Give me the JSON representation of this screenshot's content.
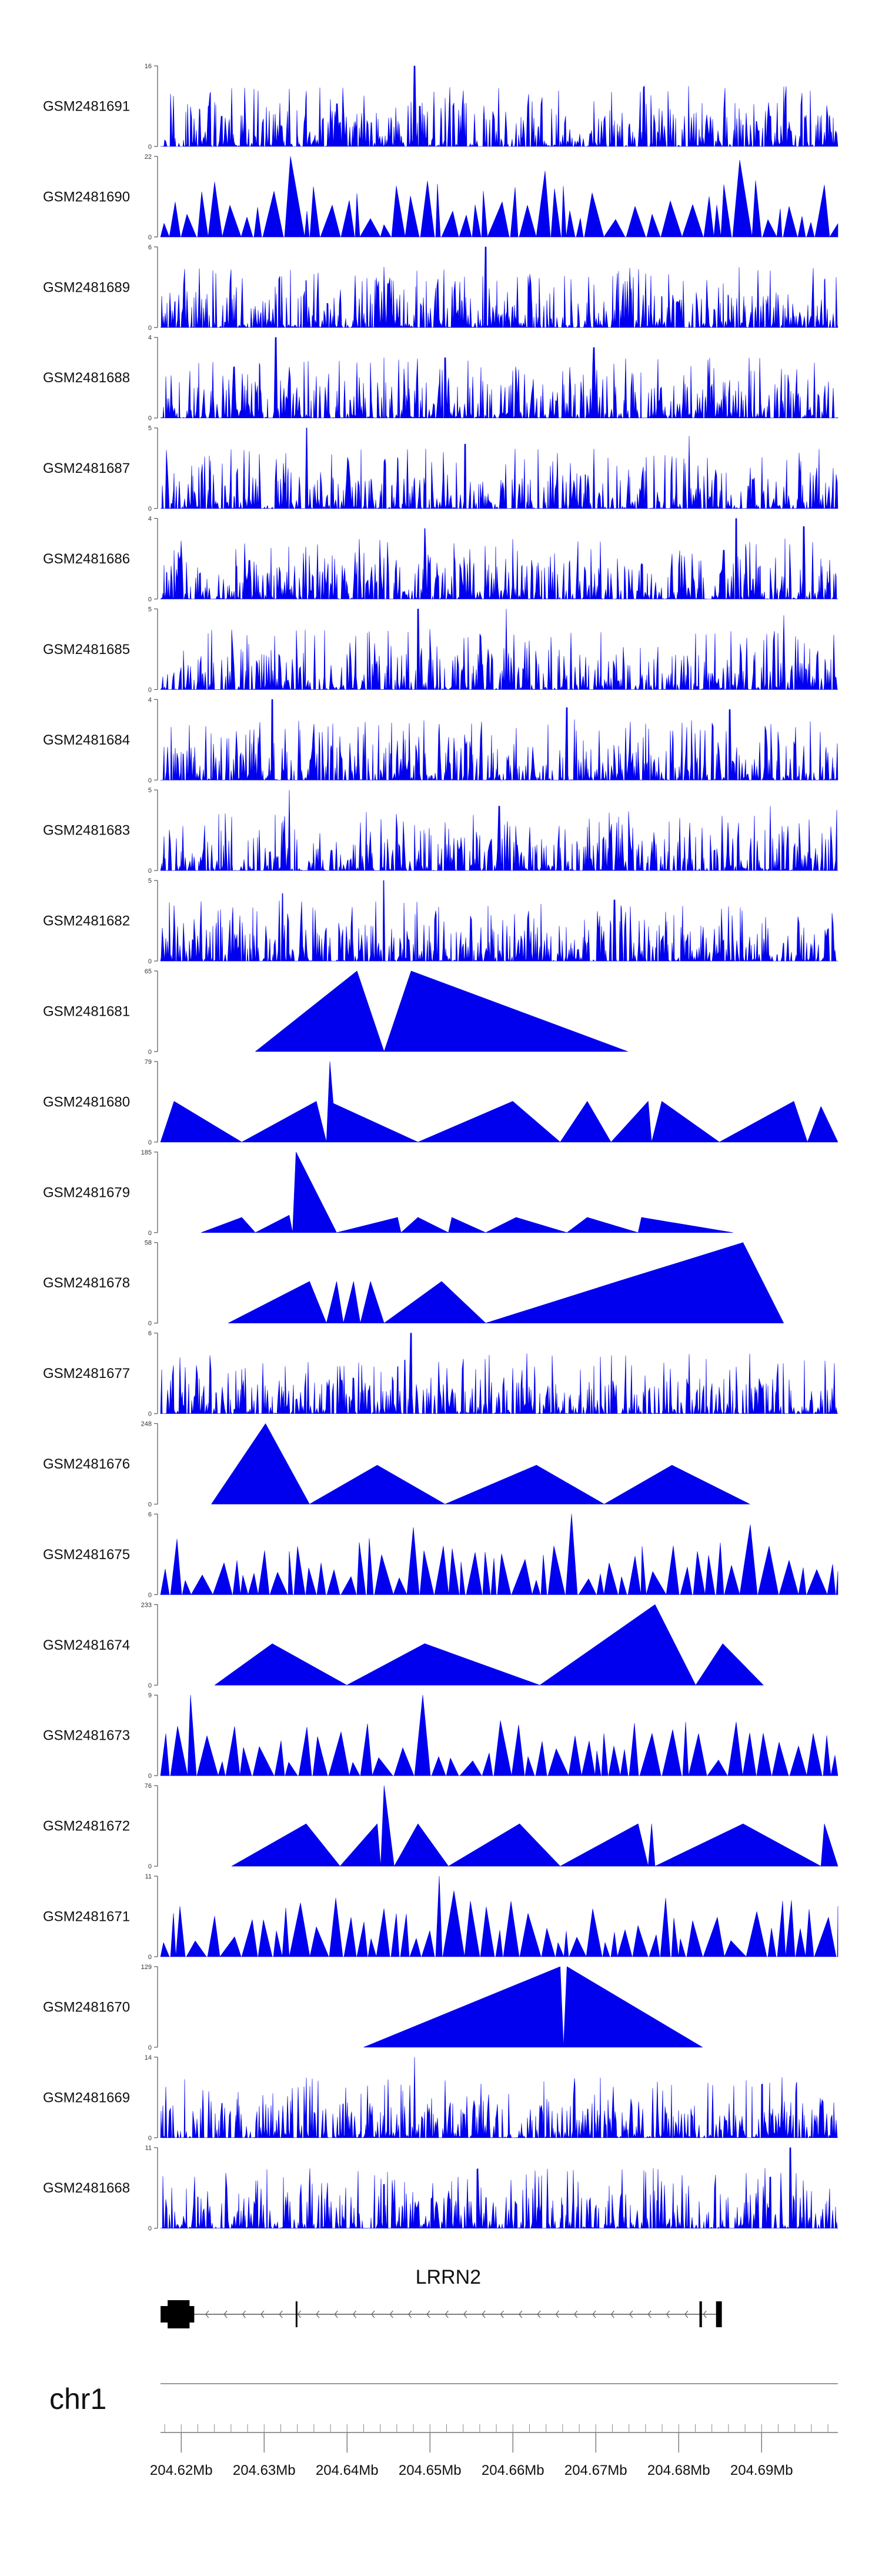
{
  "chart_data": {
    "type": "area",
    "title": "",
    "color": "#0000ee",
    "tracks": [
      {
        "name": "GSM2481691",
        "ymax": 16,
        "ymin": 0,
        "style": "dense",
        "seed": 11,
        "spikes": [
          [
            0.375,
            16
          ],
          [
            0.383,
            8
          ],
          [
            0.07,
            8
          ],
          [
            0.09,
            6
          ],
          [
            0.88,
            5
          ],
          [
            0.9,
            6
          ]
        ]
      },
      {
        "name": "GSM2481690",
        "ymax": 22,
        "ymin": 0,
        "style": "sparse",
        "seed": 12,
        "spikes": [
          [
            0.205,
            22
          ],
          [
            0.57,
            18
          ],
          [
            0.86,
            21
          ]
        ]
      },
      {
        "name": "GSM2481689",
        "ymax": 6,
        "ymin": 0,
        "style": "dense",
        "seed": 13,
        "spikes": [
          [
            0.48,
            6
          ],
          [
            0.33,
            4.5
          ],
          [
            0.215,
            3.5
          ]
        ]
      },
      {
        "name": "GSM2481688",
        "ymax": 4,
        "ymin": 0,
        "style": "dense",
        "seed": 14,
        "spikes": [
          [
            0.17,
            4
          ],
          [
            0.42,
            3
          ],
          [
            0.64,
            3.5
          ]
        ]
      },
      {
        "name": "GSM2481687",
        "ymax": 5,
        "ymin": 0,
        "style": "dense",
        "seed": 15,
        "spikes": [
          [
            0.215,
            5
          ],
          [
            0.78,
            4.5
          ],
          [
            0.45,
            4
          ]
        ]
      },
      {
        "name": "GSM2481686",
        "ymax": 4,
        "ymin": 0,
        "style": "dense",
        "seed": 16,
        "spikes": [
          [
            0.85,
            4
          ],
          [
            0.39,
            3.5
          ],
          [
            0.95,
            3.6
          ]
        ]
      },
      {
        "name": "GSM2481685",
        "ymax": 5,
        "ymin": 0,
        "style": "dense",
        "seed": 17,
        "spikes": [
          [
            0.38,
            5
          ],
          [
            0.51,
            5
          ],
          [
            0.92,
            4.6
          ]
        ]
      },
      {
        "name": "GSM2481684",
        "ymax": 4,
        "ymin": 0,
        "style": "dense",
        "seed": 18,
        "spikes": [
          [
            0.165,
            4
          ],
          [
            0.6,
            3.6
          ],
          [
            0.84,
            3.5
          ]
        ]
      },
      {
        "name": "GSM2481683",
        "ymax": 5,
        "ymin": 0,
        "style": "dense",
        "seed": 19,
        "spikes": [
          [
            0.19,
            5
          ],
          [
            0.5,
            4
          ],
          [
            0.9,
            4
          ]
        ]
      },
      {
        "name": "GSM2481682",
        "ymax": 5,
        "ymin": 0,
        "style": "dense",
        "seed": 20,
        "spikes": [
          [
            0.33,
            5
          ],
          [
            0.18,
            4.2
          ],
          [
            0.67,
            3.8
          ]
        ]
      },
      {
        "name": "GSM2481681",
        "ymax": 65,
        "ymin": 0,
        "style": "triangles",
        "seed": 21,
        "x": [
          0.14,
          0.29,
          0.33,
          0.37,
          0.69
        ],
        "y": [
          0,
          65,
          0,
          65,
          0
        ]
      },
      {
        "name": "GSM2481680",
        "ymax": 79,
        "ymin": 0,
        "style": "triangles",
        "seed": 22,
        "x": [
          0.0,
          0.02,
          0.12,
          0.23,
          0.245,
          0.25,
          0.255,
          0.38,
          0.52,
          0.59,
          0.63,
          0.665,
          0.72,
          0.725,
          0.74,
          0.825,
          0.935,
          0.955,
          0.975,
          1.0
        ],
        "y": [
          0,
          40,
          0,
          40,
          0,
          79,
          38,
          0,
          40,
          0,
          40,
          0,
          40,
          0,
          40,
          0,
          40,
          0,
          35,
          0
        ]
      },
      {
        "name": "GSM2481679",
        "ymax": 185,
        "ymin": 0,
        "style": "triangles",
        "seed": 23,
        "x": [
          0.06,
          0.12,
          0.14,
          0.19,
          0.195,
          0.2,
          0.26,
          0.35,
          0.355,
          0.38,
          0.425,
          0.43,
          0.48,
          0.525,
          0.6,
          0.63,
          0.705,
          0.71,
          0.845
        ],
        "y": [
          0,
          35,
          0,
          40,
          0,
          185,
          0,
          35,
          0,
          35,
          0,
          35,
          0,
          35,
          0,
          35,
          0,
          35,
          0
        ]
      },
      {
        "name": "GSM2481678",
        "ymax": 58,
        "ymin": 0,
        "style": "triangles",
        "seed": 24,
        "x": [
          0.1,
          0.22,
          0.245,
          0.26,
          0.27,
          0.285,
          0.295,
          0.31,
          0.33,
          0.415,
          0.48,
          0.675,
          0.86,
          0.92
        ],
        "y": [
          0,
          30,
          0,
          30,
          0,
          30,
          0,
          30,
          0,
          30,
          0,
          30,
          58,
          0
        ]
      },
      {
        "name": "GSM2481677",
        "ymax": 6,
        "ymin": 0,
        "style": "dense",
        "seed": 25,
        "spikes": [
          [
            0.37,
            6
          ],
          [
            0.36,
            4
          ],
          [
            0.35,
            3.5
          ],
          [
            0.1,
            3
          ]
        ]
      },
      {
        "name": "GSM2481676",
        "ymax": 248,
        "ymin": 0,
        "style": "triangles",
        "seed": 26,
        "x": [
          0.075,
          0.155,
          0.22,
          0.32,
          0.42,
          0.555,
          0.655,
          0.755,
          0.87
        ],
        "y": [
          0,
          248,
          0,
          120,
          0,
          120,
          0,
          120,
          0
        ]
      },
      {
        "name": "GSM2481675",
        "ymax": 6,
        "ymin": 0,
        "style": "sparse",
        "seed": 27,
        "spikes": [
          [
            0.6,
            6
          ],
          [
            0.37,
            5
          ],
          [
            0.87,
            5.2
          ]
        ]
      },
      {
        "name": "GSM2481674",
        "ymax": 233,
        "ymin": 0,
        "style": "triangles",
        "seed": 28,
        "x": [
          0.08,
          0.165,
          0.275,
          0.39,
          0.56,
          0.73,
          0.79,
          0.83,
          0.89
        ],
        "y": [
          0,
          120,
          0,
          120,
          0,
          233,
          0,
          120,
          0
        ]
      },
      {
        "name": "GSM2481673",
        "ymax": 9,
        "ymin": 0,
        "style": "sparse",
        "seed": 29,
        "spikes": [
          [
            0.045,
            9
          ],
          [
            0.375,
            9
          ],
          [
            0.855,
            6
          ]
        ]
      },
      {
        "name": "GSM2481672",
        "ymax": 76,
        "ymin": 0,
        "style": "triangles",
        "seed": 30,
        "x": [
          0.105,
          0.215,
          0.265,
          0.32,
          0.325,
          0.33,
          0.345,
          0.38,
          0.425,
          0.53,
          0.59,
          0.705,
          0.72,
          0.725,
          0.73,
          0.86,
          0.975,
          0.98,
          1.0
        ],
        "y": [
          0,
          40,
          0,
          40,
          0,
          76,
          0,
          40,
          0,
          40,
          0,
          40,
          0,
          40,
          0,
          40,
          0,
          40,
          0
        ]
      },
      {
        "name": "GSM2481671",
        "ymax": 11,
        "ymin": 0,
        "style": "sparse",
        "seed": 31,
        "spikes": [
          [
            0.41,
            11
          ],
          [
            0.42,
            9
          ],
          [
            0.75,
            8
          ],
          [
            0.265,
            8
          ]
        ]
      },
      {
        "name": "GSM2481670",
        "ymax": 129,
        "ymin": 0,
        "style": "triangles",
        "seed": 32,
        "x": [
          0.3,
          0.59,
          0.595,
          0.6,
          0.8
        ],
        "y": [
          0,
          129,
          0,
          129,
          0
        ]
      },
      {
        "name": "GSM2481669",
        "ymax": 14,
        "ymin": 0,
        "style": "dense",
        "seed": 33,
        "spikes": [
          [
            0.375,
            14
          ],
          [
            0.09,
            6
          ],
          [
            0.63,
            5
          ]
        ]
      },
      {
        "name": "GSM2481668",
        "ymax": 11,
        "ymin": 0,
        "style": "dense",
        "seed": 34,
        "spikes": [
          [
            0.93,
            11
          ],
          [
            0.9,
            7
          ],
          [
            0.33,
            6
          ],
          [
            0.05,
            7
          ]
        ]
      }
    ],
    "gene": {
      "name": "LRRN2",
      "start": 204.6185,
      "end": 204.6852,
      "strand": "-",
      "exons": [
        [
          204.6185,
          204.621
        ],
        [
          204.6338,
          204.634
        ],
        [
          204.6825,
          204.6828
        ],
        [
          204.6845,
          204.6852
        ]
      ]
    },
    "chromosome": "chr1",
    "axis": {
      "start": 204.6175,
      "end": 204.6992,
      "ticks": [
        204.62,
        204.63,
        204.64,
        204.65,
        204.66,
        204.67,
        204.68,
        204.69
      ],
      "tick_labels": [
        "204.62Mb",
        "204.63Mb",
        "204.64Mb",
        "204.65Mb",
        "204.66Mb",
        "204.67Mb",
        "204.68Mb",
        "204.69Mb"
      ],
      "minor_step": 0.002
    }
  }
}
